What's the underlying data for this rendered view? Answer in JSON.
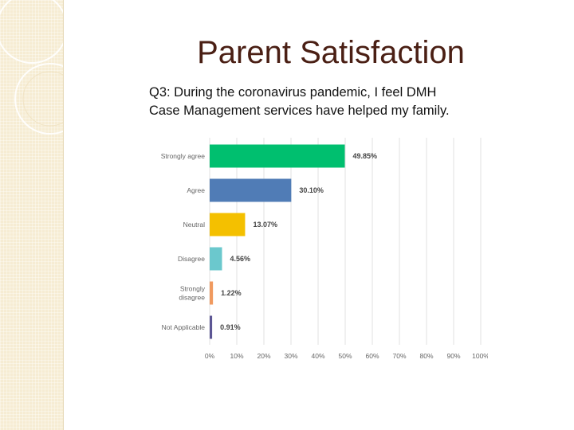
{
  "slide": {
    "title": "Parent Satisfaction",
    "subtitle_line1": "Q3: During the coronavirus pandemic, I feel DMH",
    "subtitle_line2": "Case Management services have helped my family."
  },
  "chart_data": {
    "type": "bar",
    "orientation": "horizontal",
    "title": "",
    "xlabel": "",
    "ylabel": "",
    "xlim": [
      0,
      100
    ],
    "grid": true,
    "legend": "none",
    "categories": [
      [
        "Strongly agree"
      ],
      [
        "Agree"
      ],
      [
        "Neutral"
      ],
      [
        "Disagree"
      ],
      [
        "Strongly",
        "disagree"
      ],
      [
        "Not Applicable"
      ]
    ],
    "values": [
      49.85,
      30.1,
      13.07,
      4.56,
      1.22,
      0.91
    ],
    "data_labels": [
      "49.85%",
      "30.10%",
      "13.07%",
      "4.56%",
      "1.22%",
      "0.91%"
    ],
    "colors": [
      "#00bf6f",
      "#507cb6",
      "#f4c000",
      "#6bc8cd",
      "#f09a5f",
      "#5c5694"
    ],
    "ticks": [
      "0%",
      "10%",
      "20%",
      "30%",
      "40%",
      "50%",
      "60%",
      "70%",
      "80%",
      "90%",
      "100%"
    ]
  },
  "colors": {
    "title": "#4a1f14",
    "sidebar": "#f6ecd3",
    "grid": "#e2e2e2",
    "axis_text": "#666666",
    "label_text": "#444444"
  }
}
